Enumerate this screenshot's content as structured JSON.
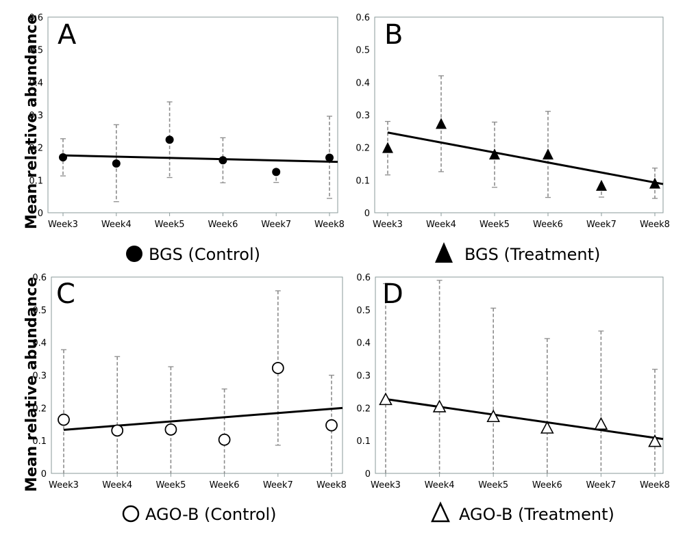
{
  "y_axis_label": "Mean relative abundance",
  "chart_data": [
    {
      "type": "scatter",
      "panel": "A",
      "categories": [
        "Week3",
        "Week4",
        "Week5",
        "Week6",
        "Week7",
        "Week8"
      ],
      "series": [
        {
          "name": "BGS (Control)",
          "marker": "filled-circle",
          "values": [
            0.17,
            0.151,
            0.224,
            0.161,
            0.125,
            0.169
          ],
          "error_low": [
            0.113,
            0.034,
            0.108,
            0.092,
            0.093,
            0.044
          ],
          "error_high": [
            0.227,
            0.27,
            0.34,
            0.23,
            0.125,
            0.296
          ]
        }
      ],
      "trendline": [
        0.176,
        0.156
      ],
      "ylim": [
        0,
        0.6
      ],
      "yticks": [
        "0",
        "0.1",
        "0.2",
        "0.3",
        "0.4",
        "0.5",
        "0.6"
      ],
      "ylabel": "Mean relative abundance",
      "legend": "BGS (Control)",
      "legend_position": "bottom"
    },
    {
      "type": "scatter",
      "panel": "B",
      "categories": [
        "Week3",
        "Week4",
        "Week5",
        "Week6",
        "Week7",
        "Week8"
      ],
      "series": [
        {
          "name": "BGS (Treatment)",
          "marker": "filled-triangle",
          "values": [
            0.198,
            0.272,
            0.178,
            0.178,
            0.082,
            0.089
          ],
          "error_low": [
            0.116,
            0.126,
            0.078,
            0.047,
            0.048,
            0.044
          ],
          "error_high": [
            0.28,
            0.42,
            0.278,
            0.311,
            0.082,
            0.137
          ]
        }
      ],
      "trendline": [
        0.246,
        0.088
      ],
      "ylim": [
        0,
        0.6
      ],
      "yticks": [
        "0",
        "0.1",
        "0.2",
        "0.3",
        "0.4",
        "0.5",
        "0.6"
      ],
      "legend": "BGS (Treatment)",
      "legend_position": "bottom"
    },
    {
      "type": "scatter",
      "panel": "C",
      "categories": [
        "Week3",
        "Week4",
        "Week5",
        "Week6",
        "Week7",
        "Week8"
      ],
      "series": [
        {
          "name": "AGO-B (Control)",
          "marker": "open-circle",
          "values": [
            0.164,
            0.131,
            0.134,
            0.103,
            0.322,
            0.147
          ],
          "error_low": [
            0,
            0,
            0,
            0,
            0.086,
            0
          ],
          "error_high": [
            0.378,
            0.357,
            0.326,
            0.258,
            0.558,
            0.3
          ]
        }
      ],
      "trendline": [
        0.133,
        0.2
      ],
      "ylim": [
        0,
        0.6
      ],
      "yticks": [
        "0",
        "0.1",
        "0.2",
        "0.3",
        "0.4",
        "0.5",
        "0.6"
      ],
      "ylabel": "Mean relative abundance",
      "legend": "AGO-B (Control)",
      "legend_position": "bottom"
    },
    {
      "type": "scatter",
      "panel": "D",
      "categories": [
        "Week3",
        "Week4",
        "Week5",
        "Week6",
        "Week7",
        "Week8"
      ],
      "series": [
        {
          "name": "AGO-B (Treatment)",
          "marker": "open-triangle",
          "values": [
            0.225,
            0.203,
            0.173,
            0.138,
            0.15,
            0.097
          ],
          "error_low": [
            0,
            0,
            0,
            0,
            0,
            0
          ],
          "error_high": [
            0.58,
            0.59,
            0.505,
            0.412,
            0.435,
            0.318
          ]
        }
      ],
      "trendline": [
        0.227,
        0.105
      ],
      "ylim": [
        0,
        0.6
      ],
      "yticks": [
        "0",
        "0.1",
        "0.2",
        "0.3",
        "0.4",
        "0.5",
        "0.6"
      ],
      "legend": "AGO-B (Treatment)",
      "legend_position": "bottom"
    }
  ]
}
